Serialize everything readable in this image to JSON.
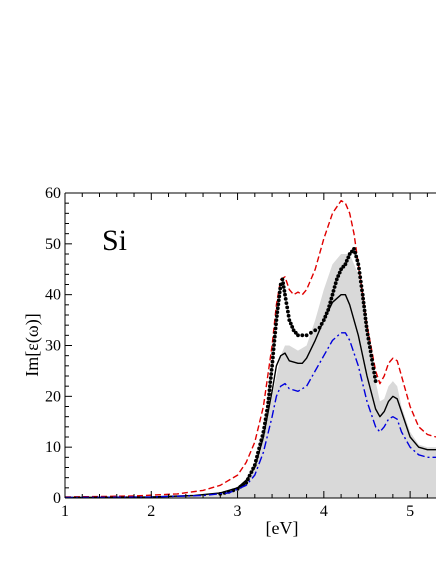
{
  "chart_data": {
    "type": "line",
    "title": "",
    "annotation": "Si",
    "xlabel": "[eV]",
    "ylabel": "Im[ε(ω)]",
    "xlim": [
      1,
      5.3
    ],
    "ylim": [
      0,
      60
    ],
    "xticks": [
      1,
      2,
      3,
      4,
      5
    ],
    "yticks": [
      0,
      10,
      20,
      30,
      40,
      50,
      60
    ],
    "grid": false,
    "legend": "none",
    "series": [
      {
        "style": "filled-gray",
        "color": "#d9d9d9",
        "points": [
          [
            1.0,
            0.1
          ],
          [
            2.0,
            0.3
          ],
          [
            2.6,
            0.6
          ],
          [
            2.9,
            1.3
          ],
          [
            3.1,
            3.0
          ],
          [
            3.2,
            6.0
          ],
          [
            3.3,
            12.0
          ],
          [
            3.4,
            20.0
          ],
          [
            3.5,
            28.0
          ],
          [
            3.55,
            30.0
          ],
          [
            3.6,
            30.0
          ],
          [
            3.7,
            29.0
          ],
          [
            3.8,
            30.0
          ],
          [
            3.9,
            35.0
          ],
          [
            4.0,
            41.0
          ],
          [
            4.1,
            46.0
          ],
          [
            4.2,
            48.0
          ],
          [
            4.3,
            48.0
          ],
          [
            4.4,
            44.0
          ],
          [
            4.5,
            34.0
          ],
          [
            4.6,
            23.0
          ],
          [
            4.65,
            19.0
          ],
          [
            4.7,
            19.5
          ],
          [
            4.75,
            22.0
          ],
          [
            4.8,
            23.0
          ],
          [
            4.85,
            22.0
          ],
          [
            4.9,
            18.0
          ],
          [
            5.0,
            13.0
          ],
          [
            5.1,
            10.5
          ],
          [
            5.2,
            10.0
          ],
          [
            5.3,
            10.0
          ]
        ]
      },
      {
        "style": "dashed",
        "color": "#e00000",
        "points": [
          [
            1.0,
            0.2
          ],
          [
            1.8,
            0.4
          ],
          [
            2.3,
            0.8
          ],
          [
            2.6,
            1.5
          ],
          [
            2.8,
            2.5
          ],
          [
            3.0,
            4.5
          ],
          [
            3.1,
            7.0
          ],
          [
            3.2,
            11.0
          ],
          [
            3.3,
            18.0
          ],
          [
            3.4,
            30.0
          ],
          [
            3.45,
            38.0
          ],
          [
            3.5,
            43.0
          ],
          [
            3.55,
            43.5
          ],
          [
            3.6,
            41.0
          ],
          [
            3.65,
            40.0
          ],
          [
            3.7,
            40.5
          ],
          [
            3.75,
            40.0
          ],
          [
            3.8,
            41.0
          ],
          [
            3.9,
            45.0
          ],
          [
            4.0,
            51.0
          ],
          [
            4.1,
            56.0
          ],
          [
            4.2,
            58.5
          ],
          [
            4.25,
            58.0
          ],
          [
            4.3,
            56.0
          ],
          [
            4.35,
            52.0
          ],
          [
            4.4,
            46.0
          ],
          [
            4.5,
            34.0
          ],
          [
            4.6,
            25.0
          ],
          [
            4.65,
            22.5
          ],
          [
            4.7,
            24.0
          ],
          [
            4.75,
            26.5
          ],
          [
            4.8,
            27.5
          ],
          [
            4.85,
            27.0
          ],
          [
            4.9,
            24.0
          ],
          [
            5.0,
            18.0
          ],
          [
            5.1,
            14.0
          ],
          [
            5.2,
            12.5
          ],
          [
            5.3,
            12.0
          ]
        ]
      },
      {
        "style": "dotted-markers",
        "color": "#000000",
        "points": [
          [
            2.8,
            0.8
          ],
          [
            2.9,
            1.2
          ],
          [
            3.0,
            1.8
          ],
          [
            3.1,
            3.0
          ],
          [
            3.2,
            6.5
          ],
          [
            3.3,
            13.0
          ],
          [
            3.35,
            18.0
          ],
          [
            3.4,
            26.0
          ],
          [
            3.45,
            35.0
          ],
          [
            3.5,
            42.0
          ],
          [
            3.52,
            43.0
          ],
          [
            3.55,
            40.0
          ],
          [
            3.6,
            35.0
          ],
          [
            3.65,
            33.0
          ],
          [
            3.7,
            32.0
          ],
          [
            3.75,
            32.0
          ],
          [
            3.8,
            32.0
          ],
          [
            3.85,
            32.5
          ],
          [
            3.9,
            33.0
          ],
          [
            3.95,
            33.5
          ],
          [
            4.0,
            35.0
          ],
          [
            4.05,
            37.0
          ],
          [
            4.1,
            40.0
          ],
          [
            4.15,
            43.0
          ],
          [
            4.2,
            45.0
          ],
          [
            4.25,
            46.0
          ],
          [
            4.3,
            48.0
          ],
          [
            4.35,
            49.0
          ],
          [
            4.4,
            46.0
          ],
          [
            4.45,
            40.0
          ],
          [
            4.5,
            33.0
          ],
          [
            4.55,
            28.0
          ],
          [
            4.6,
            23.0
          ]
        ]
      },
      {
        "style": "solid",
        "color": "#000000",
        "points": [
          [
            1.0,
            0.1
          ],
          [
            2.0,
            0.2
          ],
          [
            2.5,
            0.5
          ],
          [
            2.8,
            1.0
          ],
          [
            3.0,
            2.0
          ],
          [
            3.1,
            3.5
          ],
          [
            3.2,
            6.0
          ],
          [
            3.3,
            12.0
          ],
          [
            3.4,
            21.0
          ],
          [
            3.45,
            26.0
          ],
          [
            3.5,
            28.0
          ],
          [
            3.55,
            28.5
          ],
          [
            3.6,
            27.0
          ],
          [
            3.7,
            26.5
          ],
          [
            3.75,
            26.5
          ],
          [
            3.8,
            27.5
          ],
          [
            3.9,
            31.0
          ],
          [
            4.0,
            35.0
          ],
          [
            4.1,
            38.5
          ],
          [
            4.2,
            40.0
          ],
          [
            4.25,
            40.0
          ],
          [
            4.3,
            38.0
          ],
          [
            4.4,
            32.0
          ],
          [
            4.5,
            24.0
          ],
          [
            4.6,
            17.5
          ],
          [
            4.65,
            16.0
          ],
          [
            4.7,
            17.0
          ],
          [
            4.75,
            19.0
          ],
          [
            4.8,
            20.0
          ],
          [
            4.85,
            19.5
          ],
          [
            4.9,
            17.0
          ],
          [
            5.0,
            12.0
          ],
          [
            5.1,
            10.0
          ],
          [
            5.2,
            9.5
          ],
          [
            5.3,
            9.5
          ]
        ]
      },
      {
        "style": "dash-dot",
        "color": "#0000dd",
        "points": [
          [
            1.0,
            0.1
          ],
          [
            2.0,
            0.2
          ],
          [
            2.6,
            0.5
          ],
          [
            2.9,
            1.0
          ],
          [
            3.1,
            2.5
          ],
          [
            3.2,
            4.5
          ],
          [
            3.3,
            9.0
          ],
          [
            3.4,
            16.0
          ],
          [
            3.45,
            20.0
          ],
          [
            3.5,
            22.0
          ],
          [
            3.55,
            22.5
          ],
          [
            3.6,
            21.5
          ],
          [
            3.7,
            21.0
          ],
          [
            3.8,
            22.0
          ],
          [
            3.9,
            25.0
          ],
          [
            4.0,
            28.0
          ],
          [
            4.1,
            31.0
          ],
          [
            4.2,
            32.5
          ],
          [
            4.25,
            32.5
          ],
          [
            4.3,
            31.0
          ],
          [
            4.4,
            26.0
          ],
          [
            4.5,
            19.0
          ],
          [
            4.6,
            14.0
          ],
          [
            4.65,
            13.0
          ],
          [
            4.7,
            14.0
          ],
          [
            4.75,
            15.5
          ],
          [
            4.8,
            16.0
          ],
          [
            4.85,
            15.5
          ],
          [
            4.9,
            13.0
          ],
          [
            5.0,
            10.0
          ],
          [
            5.1,
            8.5
          ],
          [
            5.2,
            8.0
          ],
          [
            5.3,
            8.0
          ]
        ]
      }
    ]
  }
}
